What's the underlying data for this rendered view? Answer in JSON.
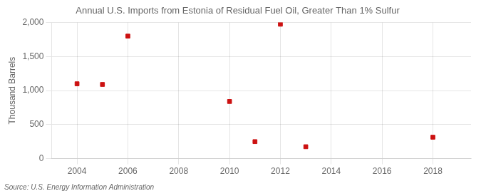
{
  "chart_data": {
    "type": "scatter",
    "title": "Annual U.S. Imports from Estonia of Residual Fuel Oil, Greater Than 1% Sulfur",
    "ylabel": "Thousand Barrels",
    "annotations": [
      "Source: U.S. Energy Information Administration"
    ],
    "x": [
      2004,
      2005,
      2006,
      2010,
      2011,
      2012,
      2013,
      2018
    ],
    "values": [
      1100,
      1090,
      1800,
      840,
      250,
      1975,
      175,
      315
    ],
    "color": "#cc1111",
    "marker": "square",
    "xlim": [
      2003,
      2019.5
    ],
    "xticks": [
      2004,
      2006,
      2008,
      2010,
      2012,
      2014,
      2016,
      2018
    ],
    "ylim": [
      0,
      2000
    ],
    "yticks": [
      0,
      500,
      {
        "value": 1000,
        "label": "1,000"
      },
      {
        "value": 1500,
        "label": "1,500"
      },
      {
        "value": 2000,
        "label": "2,000"
      }
    ],
    "grid": true
  }
}
